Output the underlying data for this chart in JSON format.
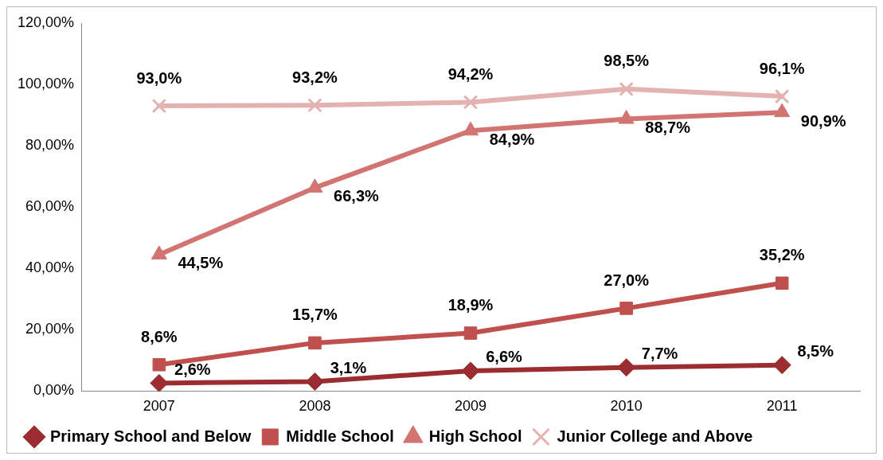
{
  "chart_data": {
    "type": "line",
    "categories": [
      "2007",
      "2008",
      "2009",
      "2010",
      "2011"
    ],
    "series": [
      {
        "name": "Primary School and Below",
        "color": "#9b2d30",
        "marker": "diamond",
        "values": [
          2.6,
          3.1,
          6.6,
          7.7,
          8.5
        ],
        "value_labels": [
          "2,6%",
          "3,1%",
          "6,6%",
          "7,7%",
          "8,5%"
        ]
      },
      {
        "name": "Middle School",
        "color": "#c0504d",
        "marker": "square",
        "values": [
          8.6,
          15.7,
          18.9,
          27.0,
          35.2
        ],
        "value_labels": [
          "8,6%",
          "15,7%",
          "18,9%",
          "27,0%",
          "35,2%"
        ]
      },
      {
        "name": "High School",
        "color": "#d27471",
        "marker": "triangle",
        "values": [
          44.5,
          66.3,
          84.9,
          88.7,
          90.9
        ],
        "value_labels": [
          "44,5%",
          "66,3%",
          "84,9%",
          "88,7%",
          "90,9%"
        ]
      },
      {
        "name": "Junior College and Above",
        "color": "#e3b3b2",
        "marker": "cross",
        "values": [
          93.0,
          93.2,
          94.2,
          98.5,
          96.1
        ],
        "value_labels": [
          "93,0%",
          "93,2%",
          "94,2%",
          "98,5%",
          "96,1%"
        ]
      }
    ],
    "ylim": [
      0,
      120
    ],
    "yticks": [
      {
        "value": 0,
        "label": "0,00%"
      },
      {
        "value": 20,
        "label": "20,00%"
      },
      {
        "value": 40,
        "label": "40,00%"
      },
      {
        "value": 60,
        "label": "60,00%"
      },
      {
        "value": 80,
        "label": "80,00%"
      },
      {
        "value": 100,
        "label": "100,00%"
      },
      {
        "value": 120,
        "label": "120,00%"
      }
    ],
    "grid": false,
    "legend": "bottom",
    "line_style": "solid"
  }
}
